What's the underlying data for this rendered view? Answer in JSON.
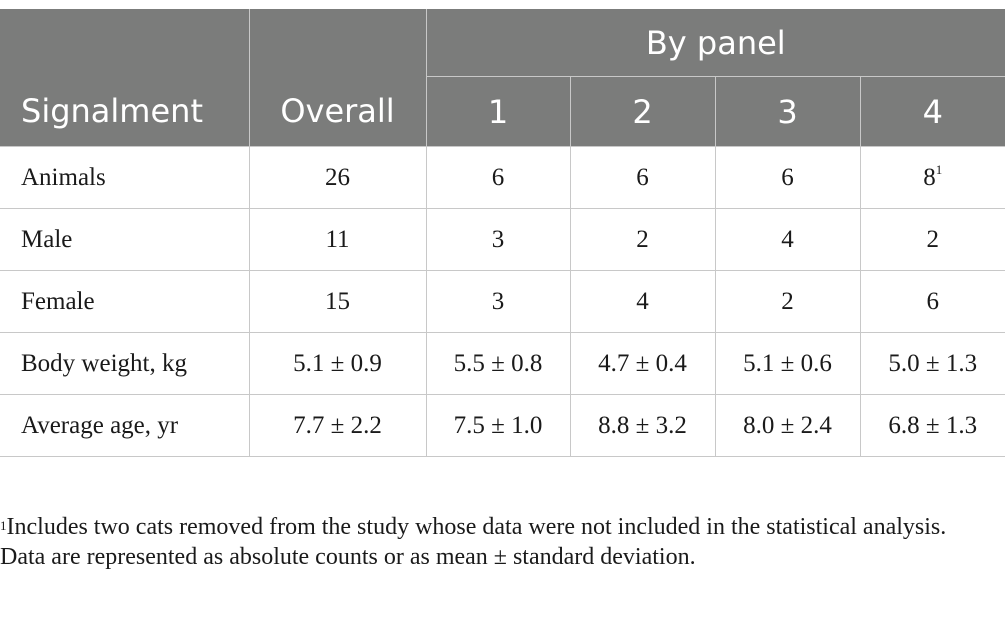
{
  "table": {
    "header": {
      "signalment": "Signalment",
      "overall": "Overall",
      "by_panel": "By panel",
      "panels": [
        "1",
        "2",
        "3",
        "4"
      ]
    },
    "rows": [
      {
        "label": "Animals",
        "overall": "26",
        "p1": "6",
        "p2": "6",
        "p3": "6",
        "p4": "8",
        "p4_note": "1"
      },
      {
        "label": "Male",
        "overall": "11",
        "p1": "3",
        "p2": "2",
        "p3": "4",
        "p4": "2"
      },
      {
        "label": "Female",
        "overall": "15",
        "p1": "3",
        "p2": "4",
        "p3": "2",
        "p4": "6"
      },
      {
        "label": "Body weight, kg",
        "overall": "5.1 ± 0.9",
        "p1": "5.5 ± 0.8",
        "p2": "4.7 ± 0.4",
        "p3": "5.1 ± 0.6",
        "p4": "5.0 ± 1.3"
      },
      {
        "label": "Average age, yr",
        "overall": "7.7 ± 2.2",
        "p1": "7.5 ± 1.0",
        "p2": "8.8 ± 3.2",
        "p3": "8.0 ± 2.4",
        "p4": "6.8 ± 1.3"
      }
    ]
  },
  "footnotes": {
    "note1_mark": "1",
    "note1_text": "Includes two cats removed from the study whose data were not included in the statistical analysis.",
    "note2_text": "Data are represented as absolute counts or as mean ± standard deviation."
  },
  "colors": {
    "header_bg": "#7b7c7b",
    "header_text": "#ffffff",
    "grid": "#c8c8c8",
    "body_text": "#1a1a1a"
  }
}
